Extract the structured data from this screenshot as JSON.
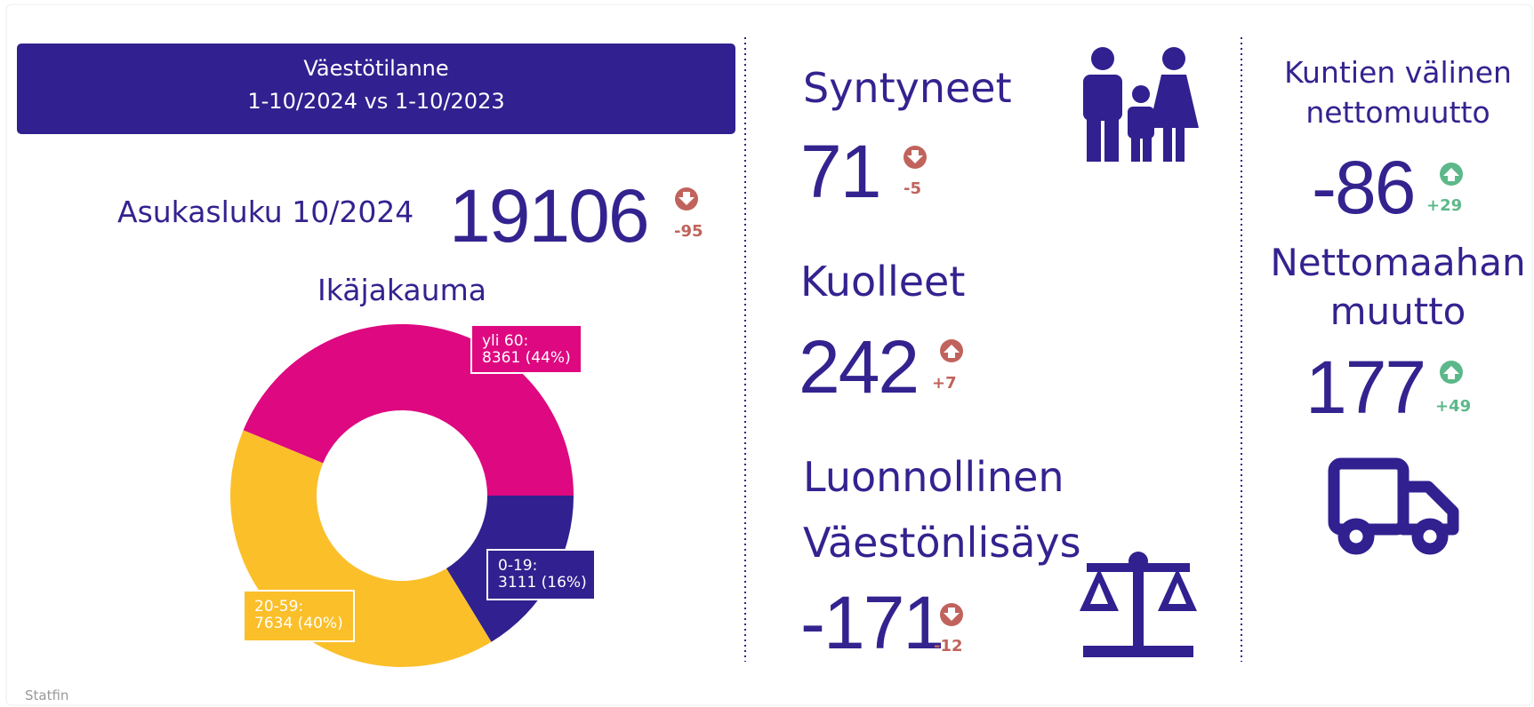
{
  "header": {
    "title": "Väestötilanne",
    "subtitle": "1-10/2024 vs 1-10/2023"
  },
  "population": {
    "label": "Asukasluku 10/2024",
    "value": 19106,
    "change": "-95"
  },
  "chart_data": {
    "type": "pie",
    "title": "Ikäjakauma",
    "categories": [
      "0-19:",
      "20-59:",
      "yli 60:"
    ],
    "values": [
      3111,
      7634,
      8361
    ],
    "value_labels": [
      "3111 (16%)",
      "7634 (40%)",
      "8361 (44%)"
    ],
    "colors": [
      "#31208f",
      "#fbbf2a",
      "#de0880"
    ],
    "donut": true
  },
  "births": {
    "label": "Syntyneet",
    "value": 71,
    "change": "-5"
  },
  "deaths": {
    "label": "Kuolleet",
    "value": 242,
    "change": "+7"
  },
  "natural_increase": {
    "label": [
      "Luonnollinen",
      "Väestönlisäys"
    ],
    "value": -171,
    "change": "-12"
  },
  "migration": {
    "label": [
      "Kuntien välinen",
      "nettomuutto"
    ],
    "value": -86,
    "change": "+29"
  },
  "immigration": {
    "label": [
      "Nettomaahan",
      "muutto"
    ],
    "value": 177,
    "change": "+49"
  },
  "footer": "Statfin"
}
